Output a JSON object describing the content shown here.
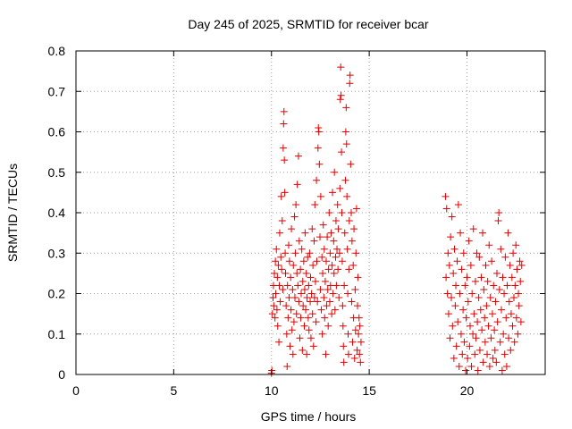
{
  "chart_data": {
    "type": "scatter",
    "title": "Day 245 of 2025, SRMTID for receiver bcar",
    "xlabel": "GPS time / hours",
    "ylabel": "SRMTID / TECUs",
    "xlim": [
      0,
      24
    ],
    "ylim": [
      0,
      0.8
    ],
    "xticks": [
      0,
      5,
      10,
      15,
      20
    ],
    "xtick_labels": [
      "0",
      "5",
      "10",
      "15",
      "20"
    ],
    "yticks": [
      0,
      0.1,
      0.2,
      0.3,
      0.4,
      0.5,
      0.6,
      0.7,
      0.8
    ],
    "ytick_labels": [
      "0",
      "0.1",
      "0.2",
      "0.3",
      "0.4",
      "0.5",
      "0.6",
      "0.7",
      "0.8"
    ],
    "grid": true,
    "marker": "+",
    "marker_color": "#e00000",
    "series": [
      {
        "name": "SRMTID",
        "points": [
          [
            10.0,
            0.003
          ],
          [
            10.02,
            0.01
          ],
          [
            10.05,
            0.15
          ],
          [
            10.08,
            0.19
          ],
          [
            10.1,
            0.22
          ],
          [
            10.12,
            0.17
          ],
          [
            10.15,
            0.25
          ],
          [
            10.18,
            0.14
          ],
          [
            10.2,
            0.28
          ],
          [
            10.22,
            0.2
          ],
          [
            10.25,
            0.31
          ],
          [
            10.28,
            0.16
          ],
          [
            10.3,
            0.24
          ],
          [
            10.32,
            0.12
          ],
          [
            10.35,
            0.27
          ],
          [
            10.38,
            0.08
          ],
          [
            10.4,
            0.22
          ],
          [
            10.42,
            0.35
          ],
          [
            10.45,
            0.18
          ],
          [
            10.48,
            0.29
          ],
          [
            10.5,
            0.44
          ],
          [
            10.52,
            0.26
          ],
          [
            10.55,
            0.38
          ],
          [
            10.58,
            0.21
          ],
          [
            10.6,
            0.56
          ],
          [
            10.62,
            0.62
          ],
          [
            10.64,
            0.65
          ],
          [
            10.66,
            0.53
          ],
          [
            10.68,
            0.45
          ],
          [
            10.7,
            0.3
          ],
          [
            10.72,
            0.25
          ],
          [
            10.75,
            0.17
          ],
          [
            10.78,
            0.1
          ],
          [
            10.8,
            0.02
          ],
          [
            10.82,
            0.22
          ],
          [
            10.85,
            0.14
          ],
          [
            10.88,
            0.32
          ],
          [
            10.9,
            0.19
          ],
          [
            10.92,
            0.28
          ],
          [
            10.95,
            0.07
          ],
          [
            10.98,
            0.24
          ],
          [
            11.0,
            0.16
          ],
          [
            11.02,
            0.36
          ],
          [
            11.05,
            0.11
          ],
          [
            11.08,
            0.21
          ],
          [
            11.1,
            0.05
          ],
          [
            11.12,
            0.27
          ],
          [
            11.15,
            0.13
          ],
          [
            11.18,
            0.39
          ],
          [
            11.2,
            0.19
          ],
          [
            11.22,
            0.3
          ],
          [
            11.25,
            0.42
          ],
          [
            11.28,
            0.15
          ],
          [
            11.3,
            0.25
          ],
          [
            11.32,
            0.47
          ],
          [
            11.35,
            0.22
          ],
          [
            11.38,
            0.54
          ],
          [
            11.4,
            0.18
          ],
          [
            11.42,
            0.33
          ],
          [
            11.45,
            0.09
          ],
          [
            11.48,
            0.26
          ],
          [
            11.5,
            0.14
          ],
          [
            11.52,
            0.2
          ],
          [
            11.55,
            0.31
          ],
          [
            11.58,
            0.06
          ],
          [
            11.6,
            0.23
          ],
          [
            11.62,
            0.17
          ],
          [
            11.65,
            0.28
          ],
          [
            11.68,
            0.12
          ],
          [
            11.7,
            0.21
          ],
          [
            11.72,
            0.35
          ],
          [
            11.75,
            0.16
          ],
          [
            11.78,
            0.25
          ],
          [
            11.8,
            0.05
          ],
          [
            11.82,
            0.19
          ],
          [
            11.85,
            0.29
          ],
          [
            11.88,
            0.14
          ],
          [
            11.9,
            0.22
          ],
          [
            11.92,
            0.11
          ],
          [
            11.95,
            0.3
          ],
          [
            11.98,
            0.18
          ],
          [
            12.0,
            0.24
          ],
          [
            12.02,
            0.09
          ],
          [
            12.05,
            0.2
          ],
          [
            12.08,
            0.36
          ],
          [
            12.1,
            0.15
          ],
          [
            12.12,
            0.27
          ],
          [
            12.15,
            0.07
          ],
          [
            12.18,
            0.33
          ],
          [
            12.2,
            0.19
          ],
          [
            12.22,
            0.42
          ],
          [
            12.25,
            0.23
          ],
          [
            12.28,
            0.13
          ],
          [
            12.3,
            0.48
          ],
          [
            12.32,
            0.28
          ],
          [
            12.35,
            0.18
          ],
          [
            12.38,
            0.56
          ],
          [
            12.4,
            0.61
          ],
          [
            12.42,
            0.6
          ],
          [
            12.45,
            0.52
          ],
          [
            12.48,
            0.34
          ],
          [
            12.5,
            0.21
          ],
          [
            12.52,
            0.44
          ],
          [
            12.55,
            0.16
          ],
          [
            12.58,
            0.29
          ],
          [
            12.6,
            0.1
          ],
          [
            12.62,
            0.25
          ],
          [
            12.65,
            0.37
          ],
          [
            12.68,
            0.19
          ],
          [
            12.7,
            0.31
          ],
          [
            12.72,
            0.14
          ],
          [
            12.75,
            0.23
          ],
          [
            12.78,
            0.05
          ],
          [
            12.8,
            0.28
          ],
          [
            12.82,
            0.17
          ],
          [
            12.85,
            0.34
          ],
          [
            12.88,
            0.21
          ],
          [
            12.9,
            0.12
          ],
          [
            12.92,
            0.26
          ],
          [
            12.95,
            0.4
          ],
          [
            12.98,
            0.18
          ],
          [
            13.0,
            0.3
          ],
          [
            13.02,
            0.22
          ],
          [
            13.05,
            0.35
          ],
          [
            13.08,
            0.15
          ],
          [
            13.1,
            0.27
          ],
          [
            13.12,
            0.45
          ],
          [
            13.15,
            0.2
          ],
          [
            13.18,
            0.33
          ],
          [
            13.2,
            0.25
          ],
          [
            13.22,
            0.5
          ],
          [
            13.25,
            0.16
          ],
          [
            13.28,
            0.29
          ],
          [
            13.3,
            0.38
          ],
          [
            13.32,
            0.22
          ],
          [
            13.35,
            0.31
          ],
          [
            13.38,
            0.42
          ],
          [
            13.4,
            0.26
          ],
          [
            13.42,
            0.36
          ],
          [
            13.45,
            0.19
          ],
          [
            13.48,
            0.3
          ],
          [
            13.5,
            0.46
          ],
          [
            13.52,
            0.68
          ],
          [
            13.54,
            0.76
          ],
          [
            13.56,
            0.69
          ],
          [
            13.58,
            0.55
          ],
          [
            13.6,
            0.4
          ],
          [
            13.62,
            0.28
          ],
          [
            13.64,
            0.17
          ],
          [
            13.66,
            0.12
          ],
          [
            13.68,
            0.07
          ],
          [
            13.7,
            0.03
          ],
          [
            13.72,
            0.22
          ],
          [
            13.75,
            0.35
          ],
          [
            13.78,
            0.48
          ],
          [
            13.8,
            0.6
          ],
          [
            13.82,
            0.66
          ],
          [
            13.84,
            0.57
          ],
          [
            13.86,
            0.44
          ],
          [
            13.88,
            0.31
          ],
          [
            13.9,
            0.2
          ],
          [
            13.92,
            0.1
          ],
          [
            13.94,
            0.05
          ],
          [
            13.96,
            0.26
          ],
          [
            13.98,
            0.38
          ],
          [
            14.0,
            0.72
          ],
          [
            14.02,
            0.74
          ],
          [
            14.05,
            0.52
          ],
          [
            14.08,
            0.4
          ],
          [
            14.1,
            0.18
          ],
          [
            14.12,
            0.33
          ],
          [
            14.15,
            0.08
          ],
          [
            14.18,
            0.27
          ],
          [
            14.2,
            0.14
          ],
          [
            14.22,
            0.36
          ],
          [
            14.25,
            0.04
          ],
          [
            14.28,
            0.21
          ],
          [
            14.3,
            0.11
          ],
          [
            14.32,
            0.3
          ],
          [
            14.35,
            0.41
          ],
          [
            14.38,
            0.06
          ],
          [
            14.4,
            0.17
          ],
          [
            14.42,
            0.24
          ],
          [
            14.45,
            0.1
          ],
          [
            14.48,
            0.14
          ],
          [
            14.5,
            0.05
          ],
          [
            14.52,
            0.12
          ],
          [
            14.55,
            0.03
          ],
          [
            14.58,
            0.08
          ],
          [
            18.9,
            0.44
          ],
          [
            18.93,
            0.24
          ],
          [
            18.96,
            0.41
          ],
          [
            19.0,
            0.2
          ],
          [
            19.03,
            0.3
          ],
          [
            19.06,
            0.15
          ],
          [
            19.1,
            0.27
          ],
          [
            19.13,
            0.09
          ],
          [
            19.16,
            0.34
          ],
          [
            19.2,
            0.19
          ],
          [
            19.23,
            0.39
          ],
          [
            19.26,
            0.12
          ],
          [
            19.3,
            0.25
          ],
          [
            19.33,
            0.04
          ],
          [
            19.36,
            0.31
          ],
          [
            19.4,
            0.17
          ],
          [
            19.43,
            0.22
          ],
          [
            19.46,
            0.07
          ],
          [
            19.5,
            0.28
          ],
          [
            19.53,
            0.13
          ],
          [
            19.56,
            0.42
          ],
          [
            19.6,
            0.02
          ],
          [
            19.63,
            0.2
          ],
          [
            19.66,
            0.35
          ],
          [
            19.7,
            0.1
          ],
          [
            19.73,
            0.26
          ],
          [
            19.76,
            0.05
          ],
          [
            19.8,
            0.16
          ],
          [
            19.83,
            0.3
          ],
          [
            19.86,
            0.08
          ],
          [
            19.9,
            0.22
          ],
          [
            19.93,
            0.01
          ],
          [
            19.96,
            0.14
          ],
          [
            20.0,
            0.24
          ],
          [
            20.03,
            0.04
          ],
          [
            20.06,
            0.18
          ],
          [
            20.1,
            0.33
          ],
          [
            20.13,
            0.07
          ],
          [
            20.16,
            0.12
          ],
          [
            20.2,
            0.27
          ],
          [
            20.23,
            0.02
          ],
          [
            20.26,
            0.2
          ],
          [
            20.3,
            0.1
          ],
          [
            20.33,
            0.36
          ],
          [
            20.36,
            0.15
          ],
          [
            20.4,
            0.05
          ],
          [
            20.43,
            0.23
          ],
          [
            20.46,
            0.09
          ],
          [
            20.5,
            0.3
          ],
          [
            20.53,
            0.13
          ],
          [
            20.56,
            0.01
          ],
          [
            20.6,
            0.19
          ],
          [
            20.63,
            0.29
          ],
          [
            20.66,
            0.06
          ],
          [
            20.7,
            0.16
          ],
          [
            20.73,
            0.24
          ],
          [
            20.76,
            0.11
          ],
          [
            20.8,
            0.35
          ],
          [
            20.83,
            0.03
          ],
          [
            20.86,
            0.21
          ],
          [
            20.9,
            0.14
          ],
          [
            20.93,
            0.08
          ],
          [
            20.96,
            0.27
          ],
          [
            21.0,
            0.17
          ],
          [
            21.03,
            0.05
          ],
          [
            21.06,
            0.23
          ],
          [
            21.1,
            0.12
          ],
          [
            21.13,
            0.32
          ],
          [
            21.16,
            0.02
          ],
          [
            21.2,
            0.19
          ],
          [
            21.23,
            0.09
          ],
          [
            21.26,
            0.28
          ],
          [
            21.3,
            0.15
          ],
          [
            21.33,
            0.04
          ],
          [
            21.36,
            0.22
          ],
          [
            21.4,
            0.11
          ],
          [
            21.43,
            0.06
          ],
          [
            21.46,
            0.18
          ],
          [
            21.5,
            0.03
          ],
          [
            21.53,
            0.25
          ],
          [
            21.56,
            0.13
          ],
          [
            21.6,
            0.38
          ],
          [
            21.63,
            0.4
          ],
          [
            21.66,
            0.21
          ],
          [
            21.7,
            0.08
          ],
          [
            21.73,
            0.31
          ],
          [
            21.76,
            0.16
          ],
          [
            21.8,
            0.01
          ],
          [
            21.83,
            0.24
          ],
          [
            21.86,
            0.1
          ],
          [
            21.9,
            0.2
          ],
          [
            21.93,
            0.05
          ],
          [
            21.96,
            0.29
          ],
          [
            22.0,
            0.14
          ],
          [
            22.03,
            0.02
          ],
          [
            22.06,
            0.22
          ],
          [
            22.1,
            0.35
          ],
          [
            22.13,
            0.09
          ],
          [
            22.16,
            0.18
          ],
          [
            22.2,
            0.27
          ],
          [
            22.23,
            0.06
          ],
          [
            22.26,
            0.15
          ],
          [
            22.3,
            0.24
          ],
          [
            22.33,
            0.12
          ],
          [
            22.36,
            0.3
          ],
          [
            22.4,
            0.19
          ],
          [
            22.43,
            0.08
          ],
          [
            22.46,
            0.22
          ],
          [
            22.5,
            0.32
          ],
          [
            22.53,
            0.14
          ],
          [
            22.56,
            0.26
          ],
          [
            22.6,
            0.1
          ],
          [
            22.63,
            0.2
          ],
          [
            22.66,
            0.17
          ],
          [
            22.7,
            0.28
          ],
          [
            22.73,
            0.23
          ],
          [
            22.76,
            0.13
          ],
          [
            22.8,
            0.27
          ]
        ]
      }
    ]
  }
}
